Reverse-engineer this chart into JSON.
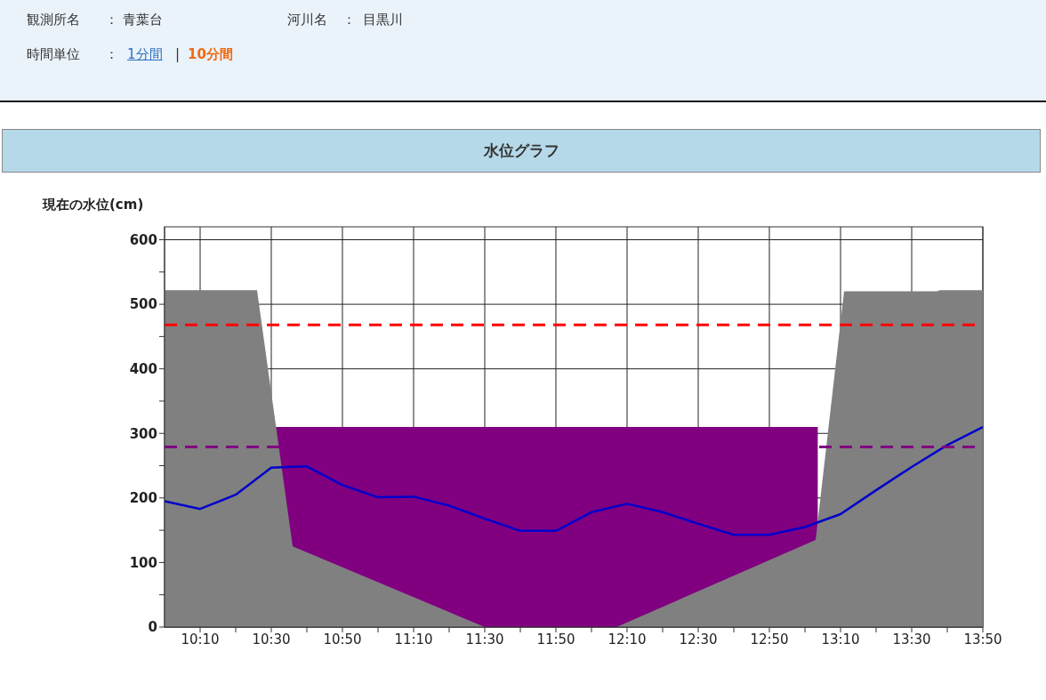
{
  "chart_data": {
    "type": "line",
    "title": "水位グラフ",
    "ylabel": "現在の水位(cm)",
    "annotations": [
      "観測所名",
      "：",
      "青葉台",
      "河川名",
      "：",
      "目黒川",
      "時間単位",
      "：",
      "1分間",
      "|",
      "10分間"
    ],
    "xlim": [
      10,
      13.8333
    ],
    "ylim": [
      0,
      620
    ],
    "xticks": [
      {
        "value": 10.1667,
        "label": "10:10"
      },
      {
        "value": 10.3333,
        "label": null
      },
      {
        "value": 10.5,
        "label": "10:30"
      },
      {
        "value": 10.6667,
        "label": null
      },
      {
        "value": 10.8333,
        "label": "10:50"
      },
      {
        "value": 11,
        "label": null
      },
      {
        "value": 11.1667,
        "label": "11:10"
      },
      {
        "value": 11.3333,
        "label": null
      },
      {
        "value": 11.5,
        "label": "11:30"
      },
      {
        "value": 11.6667,
        "label": null
      },
      {
        "value": 11.8333,
        "label": "11:50"
      },
      {
        "value": 12,
        "label": null
      },
      {
        "value": 12.1667,
        "label": "12:10"
      },
      {
        "value": 12.3333,
        "label": null
      },
      {
        "value": 12.5,
        "label": "12:30"
      },
      {
        "value": 12.6667,
        "label": null
      },
      {
        "value": 12.8333,
        "label": "12:50"
      },
      {
        "value": 13,
        "label": null
      },
      {
        "value": 13.1667,
        "label": "13:10"
      },
      {
        "value": 13.3333,
        "label": null
      },
      {
        "value": 13.5,
        "label": "13:30"
      },
      {
        "value": 13.6667,
        "label": null
      },
      {
        "value": 13.8333,
        "label": "13:50"
      }
    ],
    "yticks": [
      0,
      {
        "value": 50,
        "label": null
      },
      100,
      {
        "value": 150,
        "label": null
      },
      200,
      {
        "value": 250,
        "label": null
      },
      300,
      {
        "value": 350,
        "label": null
      },
      400,
      {
        "value": 450,
        "label": null
      },
      500,
      {
        "value": 550,
        "label": null
      },
      600
    ],
    "grid": true,
    "legend": false,
    "marker": "none",
    "series": [
      {
        "type": "area",
        "color": "#800080",
        "x": [
          10.52,
          13.06
        ],
        "values": [
          310,
          310
        ]
      },
      {
        "type": "area",
        "color": "#808080",
        "x": [
          10,
          10.4333,
          10.6,
          11.5,
          12.1167,
          13.05,
          13.1833,
          13.6167,
          13.6333,
          13.8333
        ],
        "values": [
          522,
          522,
          125,
          0,
          0,
          135,
          520,
          520,
          522,
          522
        ]
      },
      {
        "color": "#0000cc",
        "x": [
          10,
          10.1667,
          10.3333,
          10.5,
          10.6667,
          10.8333,
          11,
          11.1667,
          11.3333,
          11.5,
          11.6667,
          11.8333,
          12,
          12.1667,
          12.3333,
          12.5,
          12.6667,
          12.8333,
          13,
          13.1667,
          13.3333,
          13.5,
          13.6667,
          13.8333
        ],
        "values": [
          195,
          183,
          205,
          247,
          249,
          220,
          201,
          202,
          188,
          168,
          149,
          149,
          178,
          191,
          178,
          160,
          143,
          143,
          155,
          175,
          212,
          248,
          282,
          310
        ]
      }
    ],
    "ref_lines": [
      {
        "axis": "y",
        "value": 468,
        "color": "#ff0000",
        "line_style": "dashed"
      },
      {
        "axis": "y",
        "value": 279,
        "color": "#800080",
        "line_style": "dashed"
      }
    ]
  }
}
